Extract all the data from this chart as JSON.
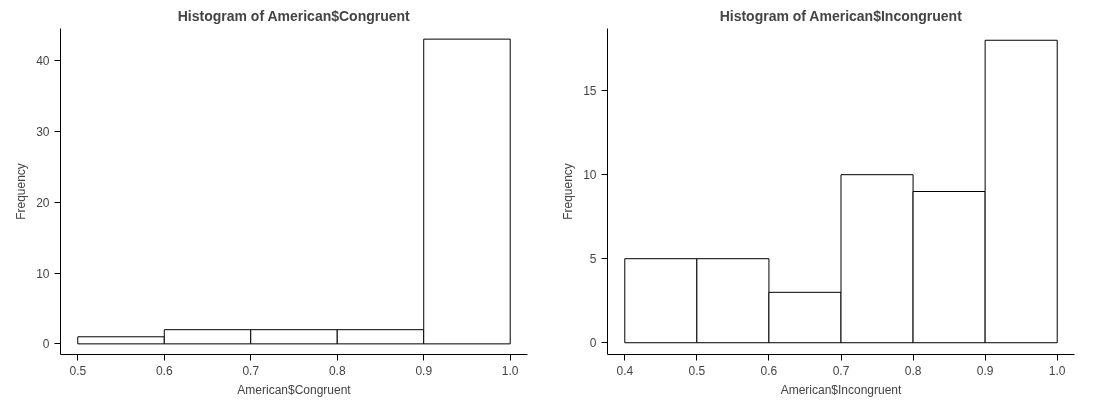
{
  "chart_data": [
    {
      "type": "histogram",
      "title": "Histogram of American$Congruent",
      "xlabel": "American$Congruent",
      "ylabel": "Frequency",
      "bins": [
        0.5,
        0.6,
        0.7,
        0.8,
        0.9,
        1.0
      ],
      "values": [
        1,
        2,
        2,
        2,
        43
      ],
      "color": "#ffffff",
      "xlim": [
        0.48,
        1.02
      ],
      "ylim": [
        -1.5,
        44.5
      ],
      "xticks": [
        0.5,
        0.6,
        0.7,
        0.8,
        0.9,
        {
          "value": 1,
          "label": "1.0"
        }
      ],
      "yticks": [
        0,
        10,
        20,
        30,
        40
      ],
      "grid": false
    },
    {
      "type": "histogram",
      "title": "Histogram of American$Incongruent",
      "xlabel": "American$Incongruent",
      "ylabel": "Frequency",
      "bins": [
        0.4,
        0.5,
        0.6,
        0.7,
        0.8,
        0.9,
        1.0
      ],
      "values": [
        5,
        5,
        3,
        10,
        9,
        18
      ],
      "color": "#ffffff",
      "xlim": [
        0.376,
        1.024
      ],
      "ylim": [
        -0.7,
        18.7
      ],
      "xticks": [
        0.4,
        0.5,
        0.6,
        0.7,
        0.8,
        0.9,
        {
          "value": 1,
          "label": "1.0"
        }
      ],
      "yticks": [
        0,
        5,
        10,
        15
      ],
      "grid": false
    }
  ]
}
